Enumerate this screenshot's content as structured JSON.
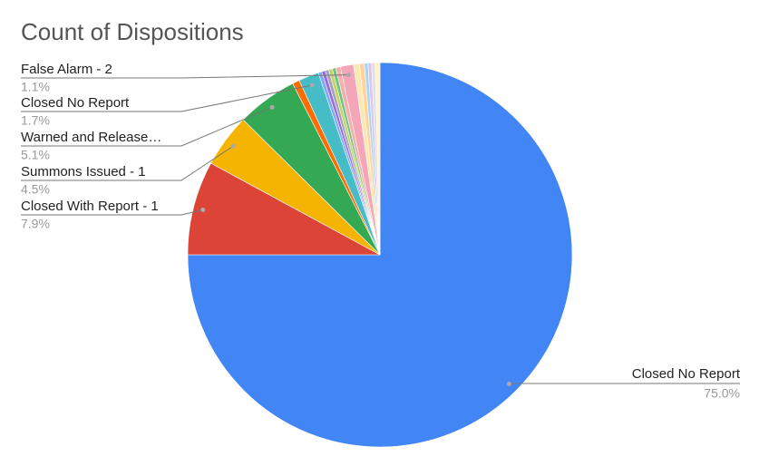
{
  "chart_data": {
    "type": "pie",
    "title": "Count of Dispositions",
    "categories": [
      "Closed No Report",
      "Closed With Report - 1",
      "Summons Issued - 1",
      "Warned and Release…",
      null,
      "Closed No Report",
      null,
      null,
      null,
      null,
      null,
      null,
      "False Alarm - 2",
      null,
      null,
      null,
      null,
      null,
      null
    ],
    "values": [
      75.0,
      7.9,
      4.5,
      5.1,
      0.6,
      1.7,
      0.3,
      0.3,
      0.3,
      0.3,
      0.3,
      0.4,
      1.1,
      0.5,
      0.4,
      0.3,
      0.3,
      0.3,
      0.4
    ],
    "value_labels": [
      "75.0%",
      "7.9%",
      "4.5%",
      "5.1%",
      null,
      "1.7%",
      null,
      null,
      null,
      null,
      null,
      null,
      "1.1%",
      null,
      null,
      null,
      null,
      null,
      null
    ],
    "colors": [
      "#4285f4",
      "#db4437",
      "#f4b400",
      "#34a853",
      "#ff6d01",
      "#46bdc6",
      "#7baaf7",
      "#9e69d9",
      "#a0a6b8",
      "#c6d263",
      "#71c287",
      "#f6aea9",
      "#f4a6b8",
      "#fce8b2",
      "#ffd39b",
      "#a9d3f5",
      "#d7c6ef",
      "#e0e0e0",
      "#fff2cc"
    ]
  }
}
